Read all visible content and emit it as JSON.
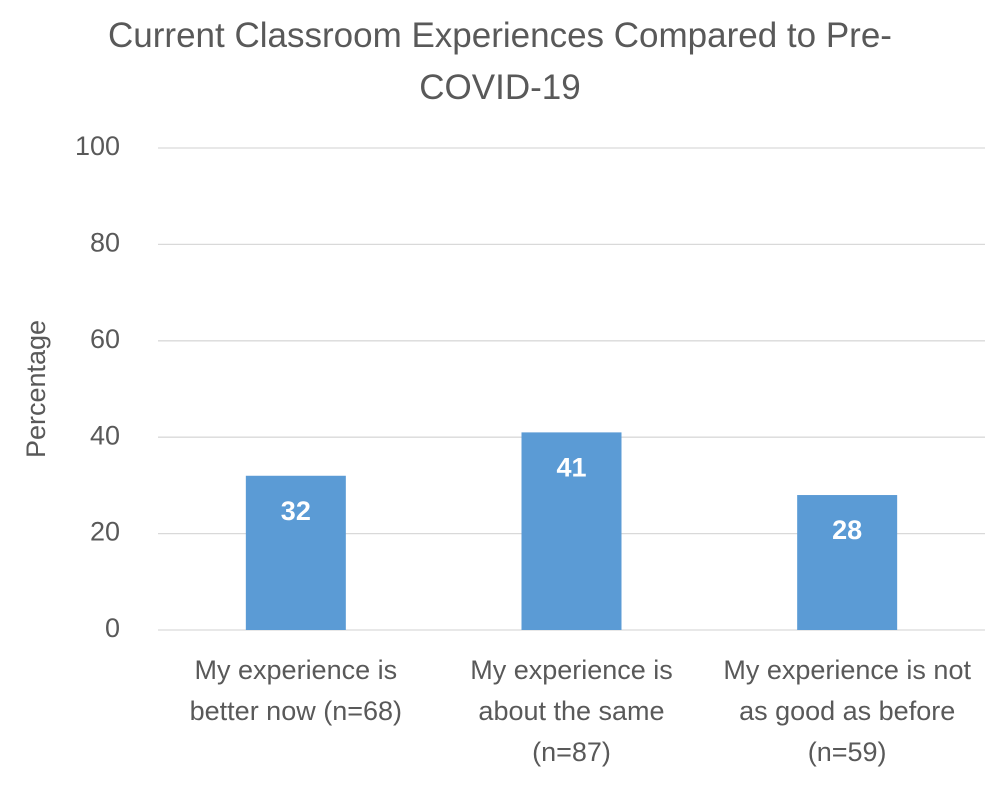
{
  "chart_data": {
    "type": "bar",
    "title": "Current Classroom Experiences Compared to Pre-COVID-19",
    "ylabel": "Percentage",
    "categories": [
      "My experience is better now (n=68)",
      "My experience is about the same (n=87)",
      "My experience is not as good as before (n=59)"
    ],
    "values": [
      32,
      41,
      28
    ],
    "color": "#5b9bd5",
    "ylim": [
      0,
      100
    ],
    "yticks": [
      0,
      20,
      40,
      60,
      80,
      100
    ],
    "grid": true
  }
}
